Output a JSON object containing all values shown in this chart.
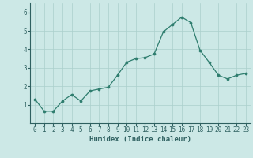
{
  "x": [
    0,
    1,
    2,
    3,
    4,
    5,
    6,
    7,
    8,
    9,
    10,
    11,
    12,
    13,
    14,
    15,
    16,
    17,
    18,
    19,
    20,
    21,
    22,
    23
  ],
  "y": [
    1.3,
    0.65,
    0.65,
    1.2,
    1.55,
    1.2,
    1.75,
    1.85,
    1.95,
    2.6,
    3.3,
    3.5,
    3.55,
    3.75,
    4.95,
    5.35,
    5.75,
    5.45,
    3.95,
    3.3,
    2.6,
    2.4,
    2.6,
    2.7
  ],
  "xlabel": "Humidex (Indice chaleur)",
  "ylim": [
    0,
    6.5
  ],
  "xlim": [
    -0.5,
    23.5
  ],
  "yticks": [
    1,
    2,
    3,
    4,
    5,
    6
  ],
  "xticks": [
    0,
    1,
    2,
    3,
    4,
    5,
    6,
    7,
    8,
    9,
    10,
    11,
    12,
    13,
    14,
    15,
    16,
    17,
    18,
    19,
    20,
    21,
    22,
    23
  ],
  "line_color": "#2e7d6e",
  "marker_color": "#2e7d6e",
  "bg_color": "#cce8e6",
  "grid_color": "#aacfcc",
  "label_color": "#2e6060",
  "tick_fontsize": 5.5,
  "xlabel_fontsize": 6.5
}
